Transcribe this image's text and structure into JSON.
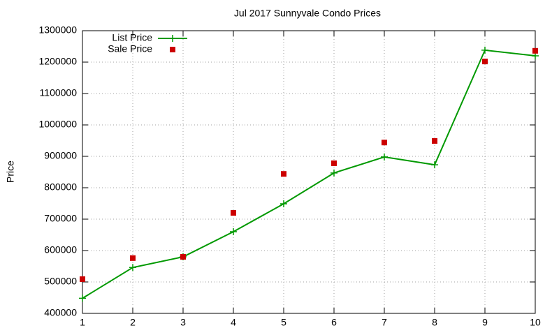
{
  "chart_data": {
    "type": "line",
    "title": "Jul 2017 Sunnyvale Condo Prices",
    "y_label": "Price",
    "x": [
      1,
      2,
      3,
      4,
      5,
      6,
      7,
      8,
      9,
      10
    ],
    "series": [
      {
        "name": "List Price",
        "color": "#009900",
        "style": "linespoints",
        "marker": "plus",
        "values": [
          448000,
          546000,
          580000,
          660000,
          749000,
          847000,
          898000,
          873000,
          1238000,
          1220000
        ]
      },
      {
        "name": "Sale Price",
        "color": "#cc0000",
        "style": "points",
        "marker": "square",
        "values": [
          509000,
          576000,
          580000,
          720000,
          844000,
          878000,
          944000,
          949000,
          1202000,
          1236000
        ]
      }
    ],
    "xlim": [
      1,
      10
    ],
    "xticks": [
      1,
      2,
      3,
      4,
      5,
      6,
      7,
      8,
      9,
      10
    ],
    "ylim": [
      400000,
      1300000
    ],
    "yticks": [
      400000,
      500000,
      600000,
      700000,
      800000,
      900000,
      1000000,
      1100000,
      1200000,
      1300000
    ],
    "grid": true,
    "legend": "top-left"
  }
}
